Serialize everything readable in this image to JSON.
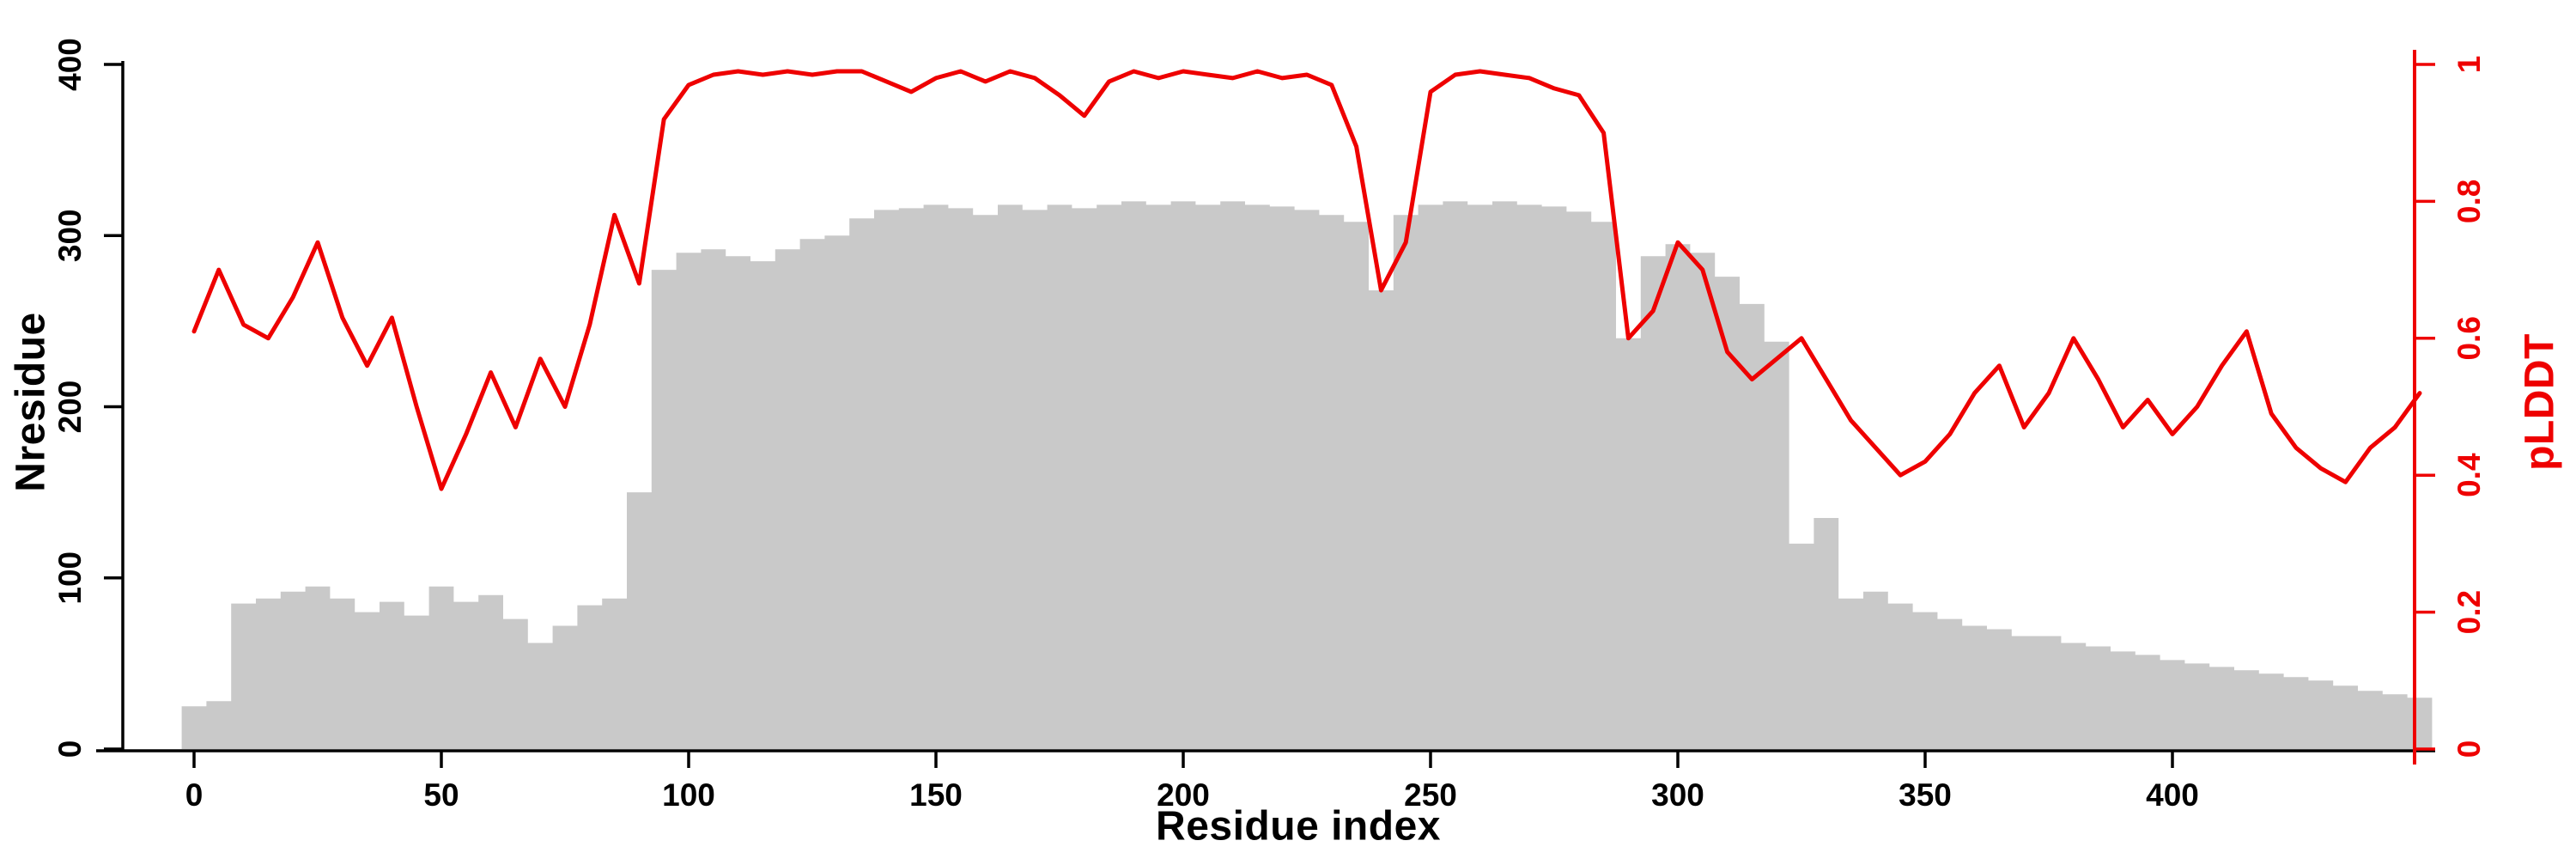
{
  "chart_data": {
    "type": "bar+line",
    "title": "",
    "xlabel": "Residue index",
    "ylabel_left": "Nresidue",
    "ylabel_right": "pLDDT",
    "xlim": [
      0,
      450
    ],
    "ylim_left": [
      0,
      400
    ],
    "ylim_right": [
      0,
      1
    ],
    "x_ticks": [
      0,
      50,
      100,
      150,
      200,
      250,
      300,
      350,
      400
    ],
    "y_left_ticks": [
      0,
      100,
      200,
      300,
      400
    ],
    "y_right_ticks": [
      0,
      0.2,
      0.4,
      0.6,
      0.8,
      1
    ],
    "grid": false,
    "legend": "none",
    "colors": {
      "bars": "#c9c9c9",
      "line": "#ee0000",
      "axis": "#000000",
      "background": "#ffffff"
    },
    "x": [
      0,
      5,
      10,
      15,
      20,
      25,
      30,
      35,
      40,
      45,
      50,
      55,
      60,
      65,
      70,
      75,
      80,
      85,
      90,
      95,
      100,
      105,
      110,
      115,
      120,
      125,
      130,
      135,
      140,
      145,
      150,
      155,
      160,
      165,
      170,
      175,
      180,
      185,
      190,
      195,
      200,
      205,
      210,
      215,
      220,
      225,
      230,
      235,
      240,
      245,
      250,
      255,
      260,
      265,
      270,
      275,
      280,
      285,
      290,
      295,
      300,
      305,
      310,
      315,
      320,
      325,
      330,
      335,
      340,
      345,
      350,
      355,
      360,
      365,
      370,
      375,
      380,
      385,
      390,
      395,
      400,
      405,
      410,
      415,
      420,
      425,
      430,
      435,
      440,
      445,
      450
    ],
    "series": [
      {
        "name": "Nresidue",
        "type": "bar",
        "axis": "left",
        "values": [
          25,
          28,
          85,
          88,
          92,
          95,
          88,
          80,
          86,
          78,
          95,
          86,
          90,
          76,
          62,
          72,
          84,
          88,
          150,
          280,
          290,
          292,
          288,
          285,
          292,
          298,
          300,
          310,
          315,
          316,
          318,
          316,
          312,
          318,
          315,
          318,
          316,
          318,
          320,
          318,
          320,
          318,
          320,
          318,
          317,
          315,
          312,
          308,
          268,
          312,
          318,
          320,
          318,
          320,
          318,
          317,
          314,
          308,
          240,
          288,
          295,
          290,
          276,
          260,
          238,
          120,
          135,
          88,
          92,
          85,
          80,
          76,
          72,
          70,
          66,
          66,
          62,
          60,
          57,
          55,
          52,
          50,
          48,
          46,
          44,
          42,
          40,
          37,
          34,
          32,
          30
        ]
      },
      {
        "name": "pLDDT",
        "type": "line",
        "axis": "right",
        "values": [
          0.61,
          0.7,
          0.62,
          0.6,
          0.66,
          0.74,
          0.63,
          0.56,
          0.63,
          0.5,
          0.38,
          0.46,
          0.55,
          0.47,
          0.57,
          0.5,
          0.62,
          0.78,
          0.68,
          0.92,
          0.97,
          0.985,
          0.99,
          0.985,
          0.99,
          0.985,
          0.99,
          0.99,
          0.975,
          0.96,
          0.98,
          0.99,
          0.975,
          0.99,
          0.98,
          0.955,
          0.925,
          0.975,
          0.99,
          0.98,
          0.99,
          0.985,
          0.98,
          0.99,
          0.98,
          0.985,
          0.97,
          0.88,
          0.67,
          0.74,
          0.96,
          0.985,
          0.99,
          0.985,
          0.98,
          0.965,
          0.955,
          0.9,
          0.6,
          0.64,
          0.74,
          0.7,
          0.58,
          0.54,
          0.57,
          0.6,
          0.54,
          0.48,
          0.44,
          0.4,
          0.42,
          0.46,
          0.52,
          0.56,
          0.47,
          0.52,
          0.6,
          0.54,
          0.47,
          0.51,
          0.46,
          0.5,
          0.56,
          0.61,
          0.49,
          0.44,
          0.41,
          0.39,
          0.44,
          0.47,
          0.52
        ]
      }
    ]
  }
}
